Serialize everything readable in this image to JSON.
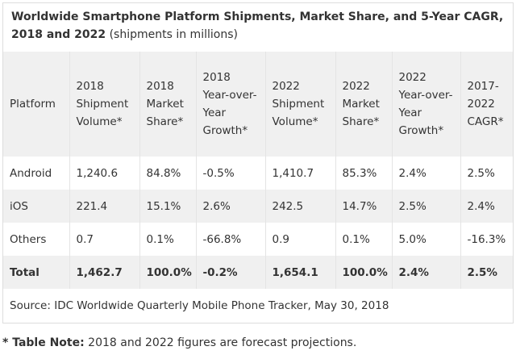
{
  "title": {
    "main": "Worldwide Smartphone Platform Shipments, Market Share, and 5-Year CAGR, 2018 and 2022",
    "sub": "(shipments in millions)"
  },
  "table": {
    "header": [
      "Platform",
      "2018 Shipment Volume*",
      "2018 Market Share*",
      "2018 Year-over-Year Growth*",
      "2022 Shipment Volume*",
      "2022 Market Share*",
      "2022 Year-over-Year Growth*",
      "2017-2022 CAGR*"
    ],
    "rows": [
      [
        "Android",
        "1,240.6",
        "84.8%",
        "-0.5%",
        "1,410.7",
        "85.3%",
        "2.4%",
        "2.5%"
      ],
      [
        "iOS",
        "221.4",
        "15.1%",
        "2.6%",
        "242.5",
        "14.7%",
        "2.5%",
        "2.4%"
      ],
      [
        "Others",
        "0.7",
        "0.1%",
        "-66.8%",
        "0.9",
        "0.1%",
        "5.0%",
        "-16.3%"
      ],
      [
        "Total",
        "1,462.7",
        "100.0%",
        "-0.2%",
        "1,654.1",
        "100.0%",
        "2.4%",
        "2.5%"
      ]
    ],
    "source": "Source: IDC Worldwide Quarterly Mobile Phone Tracker, May 30, 2018"
  },
  "note": {
    "label": "* Table Note:",
    "text": "2018 and 2022 figures are forecast projections."
  }
}
